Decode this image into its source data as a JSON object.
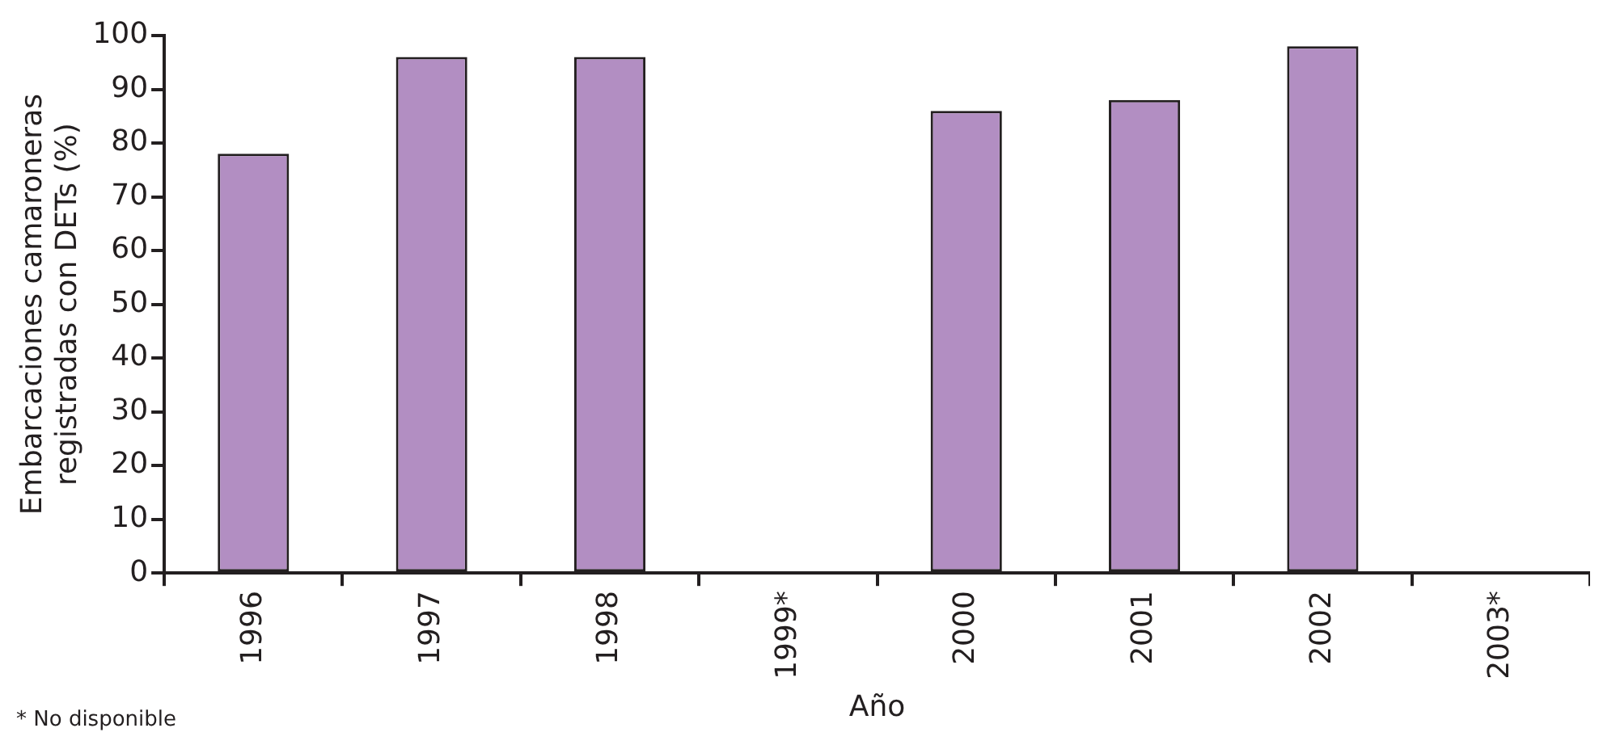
{
  "chart_data": {
    "type": "bar",
    "xlabel": "Año",
    "ylabel": "Embarcaciones camaroneras registradas con DETs (%)",
    "categories": [
      "1996",
      "1997",
      "1998",
      "1999*",
      "2000",
      "2001",
      "2002",
      "2003*"
    ],
    "values": [
      78,
      96,
      96,
      null,
      86,
      88,
      98,
      null
    ],
    "color": "#b28ec2",
    "ylim": [
      0,
      100
    ],
    "yticks": [
      0,
      10,
      20,
      30,
      40,
      50,
      60,
      70,
      80,
      90,
      100
    ],
    "grid": false,
    "legend": false,
    "annotations": [
      "* No disponible"
    ]
  }
}
